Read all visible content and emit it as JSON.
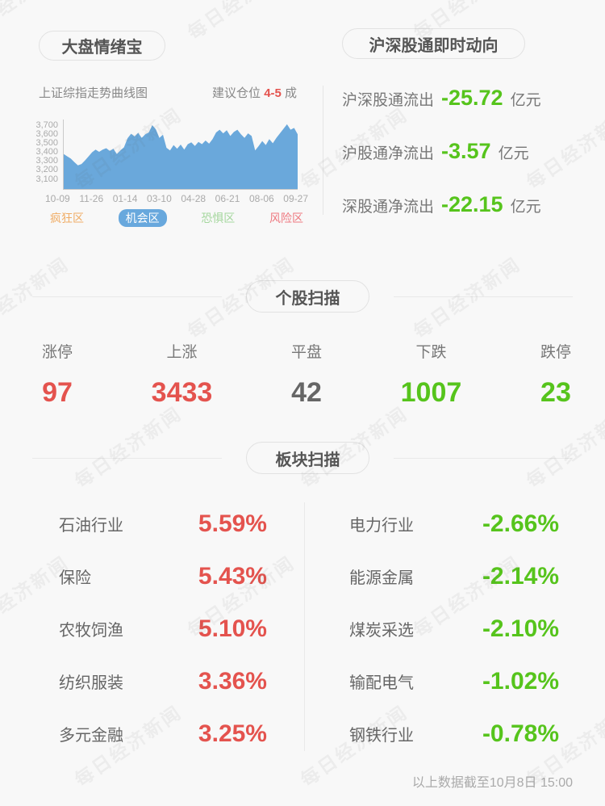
{
  "watermark": {
    "text": "每日经济新闻"
  },
  "header": {
    "left_title": "大盘情绪宝",
    "right_title": "沪深股通即时动向"
  },
  "market": {
    "chart_label": "上证综指走势曲线图",
    "advice_prefix": "建议仓位",
    "advice_value": "4-5",
    "advice_suffix": "成",
    "legend": [
      {
        "label": "疯狂区",
        "color": "#f0ad66",
        "selected": false
      },
      {
        "label": "机会区",
        "color": "#68a8dd",
        "selected": true
      },
      {
        "label": "恐惧区",
        "color": "#a5d79e",
        "selected": false
      },
      {
        "label": "风险区",
        "color": "#ee7980",
        "selected": false
      }
    ]
  },
  "chart_data": {
    "type": "area",
    "title": "上证综指走势曲线图",
    "x_ticks": [
      "10-09",
      "11-26",
      "01-14",
      "03-10",
      "04-28",
      "06-21",
      "08-06",
      "09-27"
    ],
    "y_ticks": [
      "3,700",
      "3,600",
      "3,500",
      "3,400",
      "3,300",
      "3,200",
      "3,100"
    ],
    "ylim": [
      2993,
      3763
    ],
    "area_color": "#6aa8db",
    "grid": false,
    "values": [
      3380,
      3355,
      3330,
      3290,
      3255,
      3270,
      3310,
      3355,
      3400,
      3430,
      3405,
      3430,
      3445,
      3415,
      3440,
      3380,
      3420,
      3455,
      3555,
      3605,
      3575,
      3615,
      3560,
      3600,
      3620,
      3700,
      3655,
      3560,
      3595,
      3450,
      3420,
      3480,
      3440,
      3485,
      3430,
      3490,
      3510,
      3470,
      3515,
      3490,
      3530,
      3495,
      3545,
      3620,
      3650,
      3610,
      3645,
      3580,
      3625,
      3650,
      3600,
      3560,
      3610,
      3580,
      3420,
      3470,
      3525,
      3480,
      3545,
      3500,
      3560,
      3610,
      3660,
      3710,
      3650,
      3670,
      3600
    ]
  },
  "northbound": {
    "value_color": "#56c41c",
    "rows": [
      {
        "label": "沪深股通流出",
        "value": "-25.72",
        "unit": "亿元"
      },
      {
        "label": "沪股通净流出",
        "value": "-3.57",
        "unit": "亿元"
      },
      {
        "label": "深股通净流出",
        "value": "-22.15",
        "unit": "亿元"
      }
    ]
  },
  "stock_scan": {
    "title": "个股扫描",
    "items": [
      {
        "label": "涨停",
        "value": "97",
        "color": "#e4534e"
      },
      {
        "label": "上涨",
        "value": "3433",
        "color": "#e4534e"
      },
      {
        "label": "平盘",
        "value": "42",
        "color": "#666666"
      },
      {
        "label": "下跌",
        "value": "1007",
        "color": "#56c41c"
      },
      {
        "label": "跌停",
        "value": "23",
        "color": "#56c41c"
      }
    ]
  },
  "sector_scan": {
    "title": "板块扫描",
    "up_color": "#e4534e",
    "down_color": "#56c41c",
    "left": [
      {
        "label": "石油行业",
        "value": "5.59%"
      },
      {
        "label": "保险",
        "value": "5.43%"
      },
      {
        "label": "农牧饲渔",
        "value": "5.10%"
      },
      {
        "label": "纺织服装",
        "value": "3.36%"
      },
      {
        "label": "多元金融",
        "value": "3.25%"
      }
    ],
    "right": [
      {
        "label": "电力行业",
        "value": "-2.66%"
      },
      {
        "label": "能源金属",
        "value": "-2.14%"
      },
      {
        "label": "煤炭采选",
        "value": "-2.10%"
      },
      {
        "label": "输配电气",
        "value": "-1.02%"
      },
      {
        "label": "钢铁行业",
        "value": "-0.78%"
      }
    ]
  },
  "footer": {
    "text": "以上数据截至10月8日 15:00"
  }
}
